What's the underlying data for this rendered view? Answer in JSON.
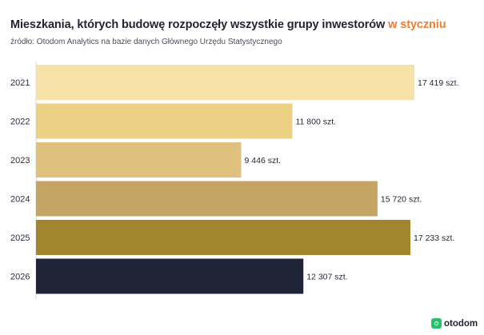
{
  "header": {
    "title_main": "Mieszkania, których budowę rozpoczęły wszystkie grupy inwestorów",
    "title_highlight": "w styczniu",
    "source": "źródło: Otodom Analytics na bazie danych Głównego Urzędu Statystycznego"
  },
  "brand": {
    "name": "otodom",
    "color": "#23c36b",
    "accent": "#f07d2e"
  },
  "chart_data": {
    "type": "bar",
    "orientation": "horizontal",
    "categories": [
      "2021",
      "2022",
      "2023",
      "2024",
      "2025",
      "2026"
    ],
    "values": [
      17419,
      11800,
      9446,
      15720,
      17233,
      12307
    ],
    "value_labels": [
      "17 419 szt.",
      "11 800 szt.",
      "9 446 szt.",
      "15 720 szt.",
      "17 233 szt.",
      "12 307 szt."
    ],
    "colors": [
      "#f6e1a6",
      "#ecd084",
      "#dfc17d",
      "#c4a563",
      "#a2862f",
      "#1f2536"
    ],
    "title": "Mieszkania, których budowę rozpoczęły wszystkie grupy inwestorów w styczniu",
    "xlabel": "",
    "ylabel": "",
    "xlim": [
      0,
      18000
    ],
    "grid": false,
    "legend": "none"
  }
}
